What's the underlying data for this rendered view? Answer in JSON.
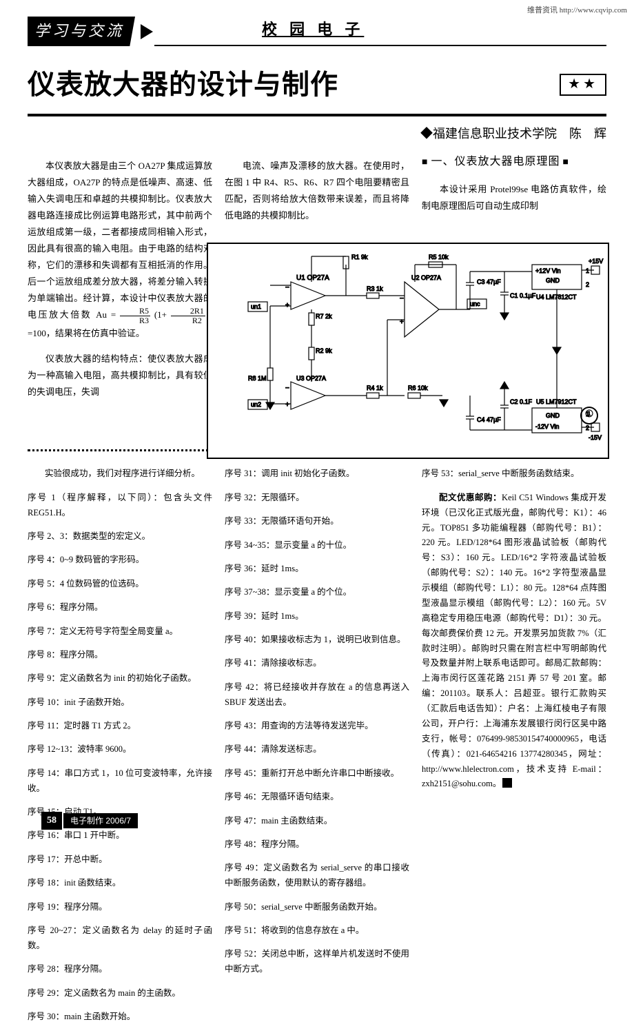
{
  "watermark": "维普资讯 http://www.cqvip.com",
  "headerBadge": "学习与交流",
  "sectionTitle": "校 园 电 子",
  "articleTitle": "仪表放大器的设计与制作",
  "stars": "★★",
  "byline": "◆福建信息职业技术学院　陈　辉",
  "colA_p1": "本仪表放大器是由三个 OA27P 集成运算放大器组成，OA27P 的特点是低噪声、高速、低输入失调电压和卓越的共模抑制比。仪表放大器电路连接成比例运算电路形式，其中前两个运放组成第一级，二者都接成同相输入形式，因此具有很高的输入电阻。由于电路的结构对称，它们的漂移和失调都有互相抵消的作用。后一个运放组成差分放大器，将差分输入转换为单端输出。经计算，本设计中仪表放大器的电压放大倍数 Au = ",
  "colA_p1_tail": "=100，结果将在仿真中验证。",
  "colA_p2": "仪表放大器的结构特点：使仪表放大器成为一种高输入电阻，高共模抑制比，具有较低的失调电压，失调",
  "colB_p1": "电流、噪声及漂移的放大器。在使用时，在图 1 中 R4、R5、R6、R7 四个电阻要精密且匹配，否则将给放大倍数带来误差，而且将降低电路的共模抑制比。",
  "colC_head": "一、仪表放大器电原理图",
  "colC_p1": "本设计采用 Protel99se 电路仿真软件，绘制电原理图后可自动生成印制",
  "figureNo": "①",
  "lower_intro": "实验很成功，我们对程序进行详细分析。",
  "lowerA": [
    "序号 1（程序解释，以下同）：包含头文件 REG51.H。",
    "序号 2、3：数据类型的宏定义。",
    "序号 4：0~9 数码管的字形码。",
    "序号 5：4 位数码管的位选码。",
    "序号 6：程序分隔。",
    "序号 7：定义无符号字符型全局变量 a。",
    "序号 8：程序分隔。",
    "序号 9：定义函数名为 init 的初始化子函数。",
    "序号 10：init 子函数开始。",
    "序号 11：定时器 T1 方式 2。",
    "序号 12~13：波特率 9600。",
    "序号 14：串口方式 1，10 位可变波特率，允许接收。",
    "序号 15：启动 T1。",
    "序号 16：串口 1 开中断。",
    "序号 17：开总中断。",
    "序号 18：init 函数结束。",
    "序号 19：程序分隔。",
    "序号 20~27：定义函数名为 delay 的延时子函数。",
    "序号 28：程序分隔。",
    "序号 29：定义函数名为 main 的主函数。",
    "序号 30：main 主函数开始。"
  ],
  "lowerB": [
    "序号 31：调用 init 初始化子函数。",
    "序号 32：无限循环。",
    "序号 33：无限循环语句开始。",
    "序号 34~35：显示变量 a 的十位。",
    "序号 36：延时 1ms。",
    "序号 37~38：显示变量 a 的个位。",
    "序号 39：延时 1ms。",
    "序号 40：如果接收标志为 1，说明已收到信息。",
    "序号 41：清除接收标志。",
    "序号 42：将已经接收并存放在 a 的信息再送入 SBUF 发送出去。",
    "序号 43：用查询的方法等待发送完毕。",
    "序号 44：清除发送标志。",
    "序号 45：重新打开总中断允许串口中断接收。",
    "序号 46：无限循环语句结束。",
    "序号 47：main 主函数结束。",
    "序号 48：程序分隔。",
    "序号 49：定义函数名为 serial_serve 的串口接收中断服务函数，使用默认的寄存器组。",
    "序号 50：serial_serve 中断服务函数开始。",
    "序号 51：将收到的信息存放在 a 中。",
    "序号 52：关闭总中断，这样单片机发送时不使用中断方式。"
  ],
  "lowerC": [
    "序号 53：serial_serve 中断服务函数结束。",
    "配文优惠邮购：Keil C51 Windows 集成开发环境（已汉化正式版光盘，邮购代号：K1）：46 元。TOP851 多功能编程器（邮购代号：B1）：220 元。LED/128*64 图形液晶试验板（邮购代号：S3）：160 元。LED/16*2 字符液晶试验板（邮购代号：S2）：140 元。16*2 字符型液晶显示模组（邮购代号：L1）：80 元。128*64 点阵图型液晶显示模组（邮购代号：L2）：160 元。5V 高稳定专用稳压电源（邮购代号：D1）：30 元。每次邮费保价费 12 元。开发票另加货款 7%（汇款时注明）。邮购时只需在附言栏中写明邮购代号及数量并附上联系电话即可。邮局汇款邮购：上海市闵行区莲花路 2151 弄 57 号 201 室。邮编：201103。联系人：吕超亚。银行汇款购买（汇款后电话告知）：户名：上海红棱电子有限公司，开户行：上海浦东发展银行闵行区吴中路支行，帐号：076499-98530154740000965，电话（传真）：021-64654216 13774280345，网址：http://www.hlelectron.com，技术支持 E-mail：zxh2151@sohu.com。"
  ],
  "pageNo": "58",
  "magIssue": "电子制作 2006/7",
  "circuit": {
    "background": "#ffffff",
    "stroke": "#000000",
    "labels": {
      "R1": "R1  9k",
      "R2": "R2  9k",
      "R3": "R3  1k",
      "R4": "R4  1k",
      "R5": "R5  10k",
      "R6": "R6  10k",
      "R7": "R7  2k",
      "R8": "R8  1M",
      "U1": "U1  OP27A",
      "U2": "U2  OP27A",
      "U3": "U3  OP27A",
      "U4": "U4  LM7812CT",
      "U5": "U5  LM7912CT",
      "C1": "C1  0.1µF",
      "C2": "C2  0.1F",
      "C3": "C3  47µF",
      "C4": "C4  47µF",
      "v12p": "+12V Vin",
      "v12m": "-12V Vin",
      "v15p": "+15V",
      "v15m": "-15V",
      "gnd": "GND",
      "unc1": "un1",
      "unc2": "un2",
      "unc": "unc"
    }
  }
}
